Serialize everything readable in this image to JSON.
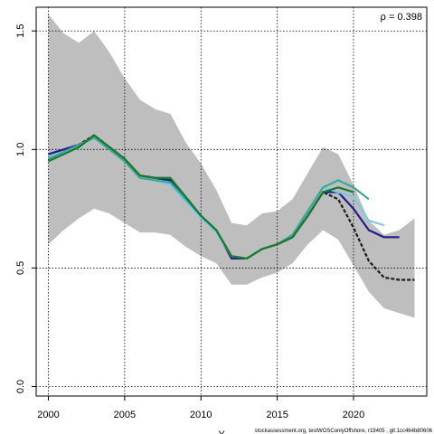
{
  "chart_data": {
    "type": "line",
    "rho_label": "ρ = 0.398",
    "xlabel": "Y",
    "ylabel": "",
    "footer": "stockassessment.org, testWOSConlyOffshore, r19405 , git:1cc464b80606",
    "xlim": [
      1999.2,
      2024.8
    ],
    "ylim": [
      -0.04,
      1.6
    ],
    "xticks": [
      2000,
      2005,
      2010,
      2015,
      2020
    ],
    "yticks": [
      0.0,
      0.5,
      1.0,
      1.5
    ],
    "ytick_labels": [
      "0.0",
      "0.5",
      "1.0",
      "1.5"
    ],
    "grid": true,
    "colors": {
      "band": "#bebebe",
      "grid": "#000000",
      "base": "#1c1c1c",
      "s1": "#251b8c",
      "s2": "#7ec9e6",
      "s3": "#3aa89a",
      "s4": "#1a7a2a"
    },
    "band": {
      "x": [
        2000,
        2001,
        2002,
        2003,
        2004,
        2005,
        2006,
        2007,
        2008,
        2009,
        2010,
        2011,
        2012,
        2013,
        2014,
        2015,
        2016,
        2017,
        2018,
        2019,
        2020,
        2021,
        2022,
        2023,
        2024
      ],
      "upper": [
        1.57,
        1.49,
        1.45,
        1.5,
        1.41,
        1.3,
        1.21,
        1.17,
        1.15,
        1.03,
        0.94,
        0.83,
        0.69,
        0.68,
        0.73,
        0.74,
        0.79,
        0.9,
        1.01,
        0.98,
        0.85,
        0.7,
        0.64,
        0.66,
        0.71
      ],
      "lower": [
        0.6,
        0.66,
        0.71,
        0.75,
        0.73,
        0.69,
        0.65,
        0.65,
        0.64,
        0.59,
        0.55,
        0.52,
        0.43,
        0.43,
        0.46,
        0.48,
        0.52,
        0.6,
        0.66,
        0.62,
        0.51,
        0.4,
        0.33,
        0.31,
        0.29
      ]
    },
    "series": [
      {
        "key": "base",
        "dashed": true,
        "x": [
          2000,
          2001,
          2002,
          2003,
          2004,
          2005,
          2006,
          2007,
          2008,
          2009,
          2010,
          2011,
          2012,
          2013,
          2014,
          2015,
          2016,
          2017,
          2018,
          2019,
          2020,
          2021,
          2022,
          2023,
          2024
        ],
        "values": [
          0.96,
          0.99,
          1.02,
          1.06,
          1.01,
          0.96,
          0.89,
          0.88,
          0.87,
          0.8,
          0.72,
          0.66,
          0.55,
          0.54,
          0.58,
          0.6,
          0.63,
          0.72,
          0.82,
          0.79,
          0.67,
          0.53,
          0.46,
          0.45,
          0.45
        ]
      },
      {
        "key": "s1",
        "dashed": false,
        "x": [
          2000,
          2001,
          2002,
          2003,
          2004,
          2005,
          2006,
          2007,
          2008,
          2009,
          2010,
          2011,
          2012,
          2013,
          2014,
          2015,
          2016,
          2017,
          2018,
          2019,
          2020,
          2021,
          2022,
          2023
        ],
        "values": [
          0.98,
          1.0,
          1.02,
          1.05,
          1.01,
          0.96,
          0.89,
          0.88,
          0.87,
          0.8,
          0.72,
          0.66,
          0.54,
          0.54,
          0.58,
          0.6,
          0.63,
          0.72,
          0.82,
          0.82,
          0.75,
          0.66,
          0.63,
          0.63
        ]
      },
      {
        "key": "s2",
        "dashed": false,
        "x": [
          2000,
          2001,
          2002,
          2003,
          2004,
          2005,
          2006,
          2007,
          2008,
          2009,
          2010,
          2011,
          2012,
          2013,
          2014,
          2015,
          2016,
          2017,
          2018,
          2019,
          2020,
          2021,
          2022
        ],
        "values": [
          0.97,
          0.99,
          1.01,
          1.05,
          1.0,
          0.95,
          0.88,
          0.87,
          0.85,
          0.78,
          0.71,
          0.65,
          0.55,
          0.54,
          0.58,
          0.6,
          0.64,
          0.74,
          0.84,
          0.82,
          0.8,
          0.7,
          0.68
        ]
      },
      {
        "key": "s3",
        "dashed": false,
        "x": [
          2000,
          2001,
          2002,
          2003,
          2004,
          2005,
          2006,
          2007,
          2008,
          2009,
          2010,
          2011,
          2012,
          2013,
          2014,
          2015,
          2016,
          2017,
          2018,
          2019,
          2020,
          2021
        ],
        "values": [
          0.96,
          0.99,
          1.02,
          1.05,
          1.0,
          0.95,
          0.88,
          0.87,
          0.86,
          0.79,
          0.72,
          0.66,
          0.55,
          0.54,
          0.58,
          0.6,
          0.64,
          0.74,
          0.84,
          0.87,
          0.84,
          0.79
        ]
      },
      {
        "key": "s4",
        "dashed": false,
        "x": [
          2000,
          2001,
          2002,
          2003,
          2004,
          2005,
          2006,
          2007,
          2008,
          2009,
          2010,
          2011,
          2012,
          2013,
          2014,
          2015,
          2016,
          2017,
          2018,
          2019,
          2020
        ],
        "values": [
          0.95,
          0.98,
          1.01,
          1.06,
          1.01,
          0.96,
          0.89,
          0.88,
          0.88,
          0.8,
          0.72,
          0.66,
          0.55,
          0.54,
          0.58,
          0.6,
          0.63,
          0.72,
          0.82,
          0.84,
          0.82
        ]
      }
    ]
  }
}
